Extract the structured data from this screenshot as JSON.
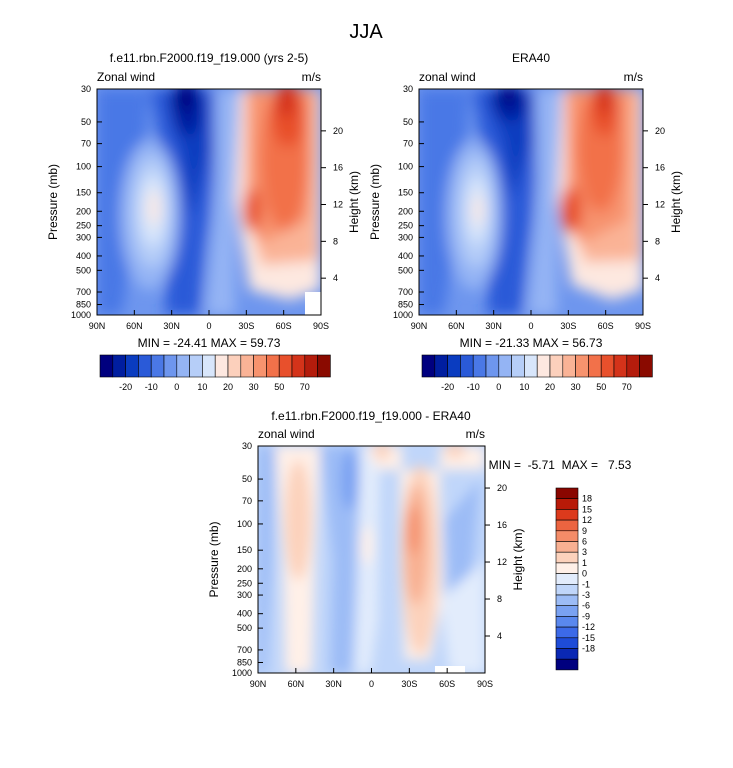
{
  "page_title": "JJA",
  "colors": {
    "panel_scale_neg": [
      "#00007f",
      "#001ea0",
      "#0a3cc0",
      "#2a5ad8",
      "#4a78e6",
      "#6e96ee",
      "#94b4f4",
      "#b6cef8",
      "#d8e6fb"
    ],
    "panel_scale_pos": [
      "#fde8e0",
      "#fcd0bc",
      "#fab396",
      "#f7936e",
      "#f2714a",
      "#e8502c",
      "#d4331a",
      "#b41c0c",
      "#8a0a00"
    ],
    "diff_scale": [
      "#00007f",
      "#0a28b4",
      "#1e4cd8",
      "#3c6ae8",
      "#5a88ee",
      "#7aa2f2",
      "#9cbcf6",
      "#c0d6fa",
      "#e2ecfc",
      "#fff0e8",
      "#fcd2bc",
      "#f8b092",
      "#f48c68",
      "#ec6440",
      "#dc3a1c",
      "#b81a08",
      "#8a0600"
    ]
  },
  "chart_data": [
    {
      "type": "heatmap",
      "title": "f.e11.rbn.F2000.f19_f19.000 (yrs 2-5)",
      "left_label": "Zonal wind",
      "right_label": "m/s",
      "xlabel": "",
      "ylabel": "Pressure (mb)",
      "ylabel_right": "Height (km)",
      "x_ticks": [
        "90N",
        "60N",
        "30N",
        "0",
        "30S",
        "60S",
        "90S"
      ],
      "y_ticks": [
        "30",
        "50",
        "70",
        "100",
        "150",
        "200",
        "250",
        "300",
        "400",
        "500",
        "700",
        "850",
        "1000"
      ],
      "y_ticks_right": [
        "20",
        "16",
        "12",
        "8",
        "4"
      ],
      "stats": "MIN = -24.41  MAX = 59.73",
      "colorbar_labels": [
        "-20",
        "-10",
        "0",
        "10",
        "20",
        "30",
        "50",
        "70"
      ],
      "features": [
        {
          "lat": 20,
          "p": 35,
          "value": -24.41
        },
        {
          "lat": -46,
          "p": 200,
          "value": 12
        },
        {
          "lat": -45,
          "p": 40,
          "value": 59.73
        },
        {
          "lat": -28,
          "p": 200,
          "value": 40
        }
      ]
    },
    {
      "type": "heatmap",
      "title": "ERA40",
      "left_label": "zonal wind",
      "right_label": "m/s",
      "xlabel": "",
      "ylabel": "Pressure (mb)",
      "ylabel_right": "Height (km)",
      "x_ticks": [
        "90N",
        "60N",
        "30N",
        "0",
        "30S",
        "60S",
        "90S"
      ],
      "y_ticks": [
        "30",
        "50",
        "70",
        "100",
        "150",
        "200",
        "250",
        "300",
        "400",
        "500",
        "700",
        "850",
        "1000"
      ],
      "y_ticks_right": [
        "20",
        "16",
        "12",
        "8",
        "4"
      ],
      "stats": "MIN = -21.33  MAX = 56.73",
      "colorbar_labels": [
        "-20",
        "-10",
        "0",
        "10",
        "20",
        "30",
        "50",
        "70"
      ],
      "features": [
        {
          "lat": 15,
          "p": 32,
          "value": -21.33
        },
        {
          "lat": -48,
          "p": 200,
          "value": 12
        },
        {
          "lat": -48,
          "p": 40,
          "value": 56.73
        },
        {
          "lat": -30,
          "p": 200,
          "value": 40
        }
      ]
    },
    {
      "type": "heatmap",
      "title": "f.e11.rbn.F2000.f19_f19.000 - ERA40",
      "left_label": "zonal wind",
      "right_label": "m/s",
      "xlabel": "",
      "ylabel": "Pressure (mb)",
      "ylabel_right": "Height (km)",
      "x_ticks": [
        "90N",
        "60N",
        "30N",
        "0",
        "30S",
        "60S",
        "90S"
      ],
      "y_ticks": [
        "30",
        "50",
        "70",
        "100",
        "150",
        "200",
        "250",
        "300",
        "400",
        "500",
        "700",
        "850",
        "1000"
      ],
      "y_ticks_right": [
        "20",
        "16",
        "12",
        "8",
        "4"
      ],
      "stats": "MIN =  -5.71  MAX =   7.53",
      "colorbar_labels": [
        "18",
        "15",
        "12",
        "9",
        "6",
        "3",
        "1",
        "0",
        "-1",
        "-3",
        "-6",
        "-9",
        "-12",
        "-15",
        "-18"
      ],
      "features": [
        {
          "lat": -30,
          "p": 110,
          "value": 7.53
        },
        {
          "lat": 5,
          "p": 35,
          "value": 3
        },
        {
          "lat": -52,
          "p": 35,
          "value": 3
        },
        {
          "lat": 58,
          "p": 100,
          "value": 2
        },
        {
          "lat": 28,
          "p": 60,
          "value": -5.71
        },
        {
          "lat": -5,
          "p": 30,
          "value": -4
        }
      ]
    }
  ]
}
